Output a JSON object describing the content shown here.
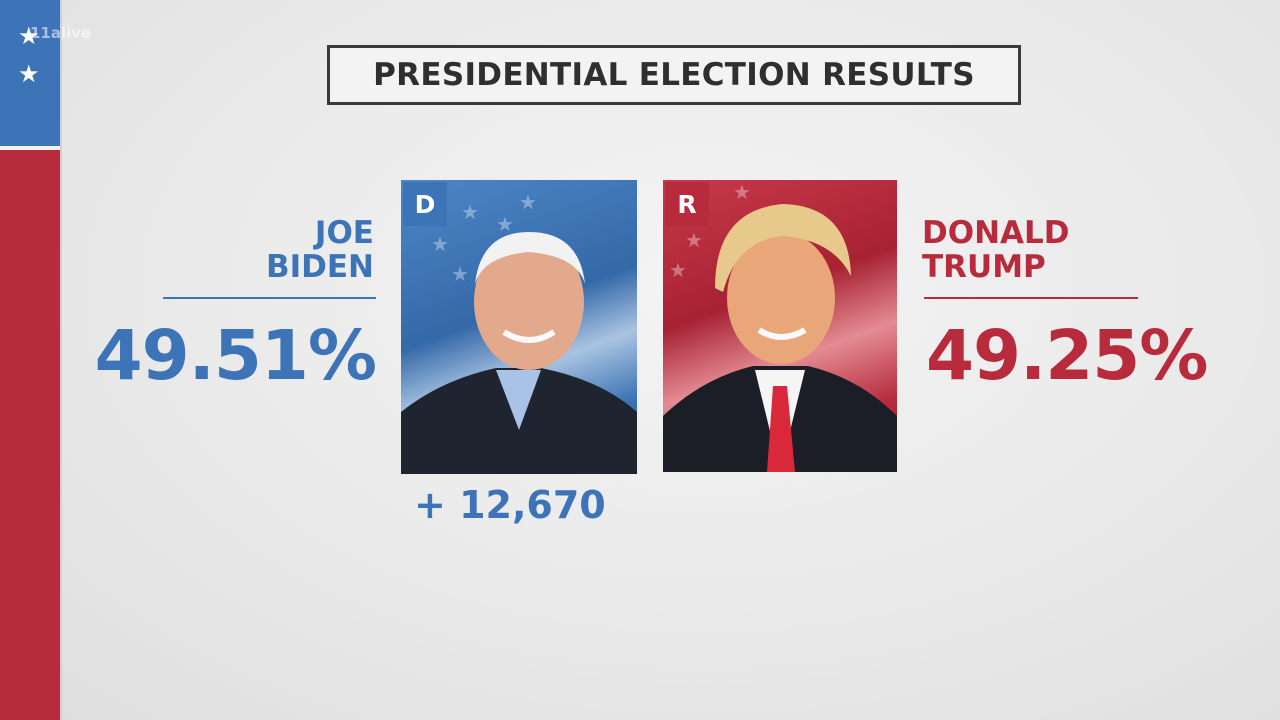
{
  "watermark": "11alive",
  "title": "PRESIDENTIAL ELECTION RESULTS",
  "candidates": {
    "democrat": {
      "first_name": "JOE",
      "last_name": "BIDEN",
      "party_badge": "D",
      "percent": "49.51%",
      "lead": "+ 12,670",
      "color": "#3d74b8"
    },
    "republican": {
      "first_name": "DONALD",
      "last_name": "TRUMP",
      "party_badge": "R",
      "percent": "49.25%",
      "color": "#b72b3c"
    }
  },
  "icons": [
    "star-icon",
    "star-icon"
  ]
}
